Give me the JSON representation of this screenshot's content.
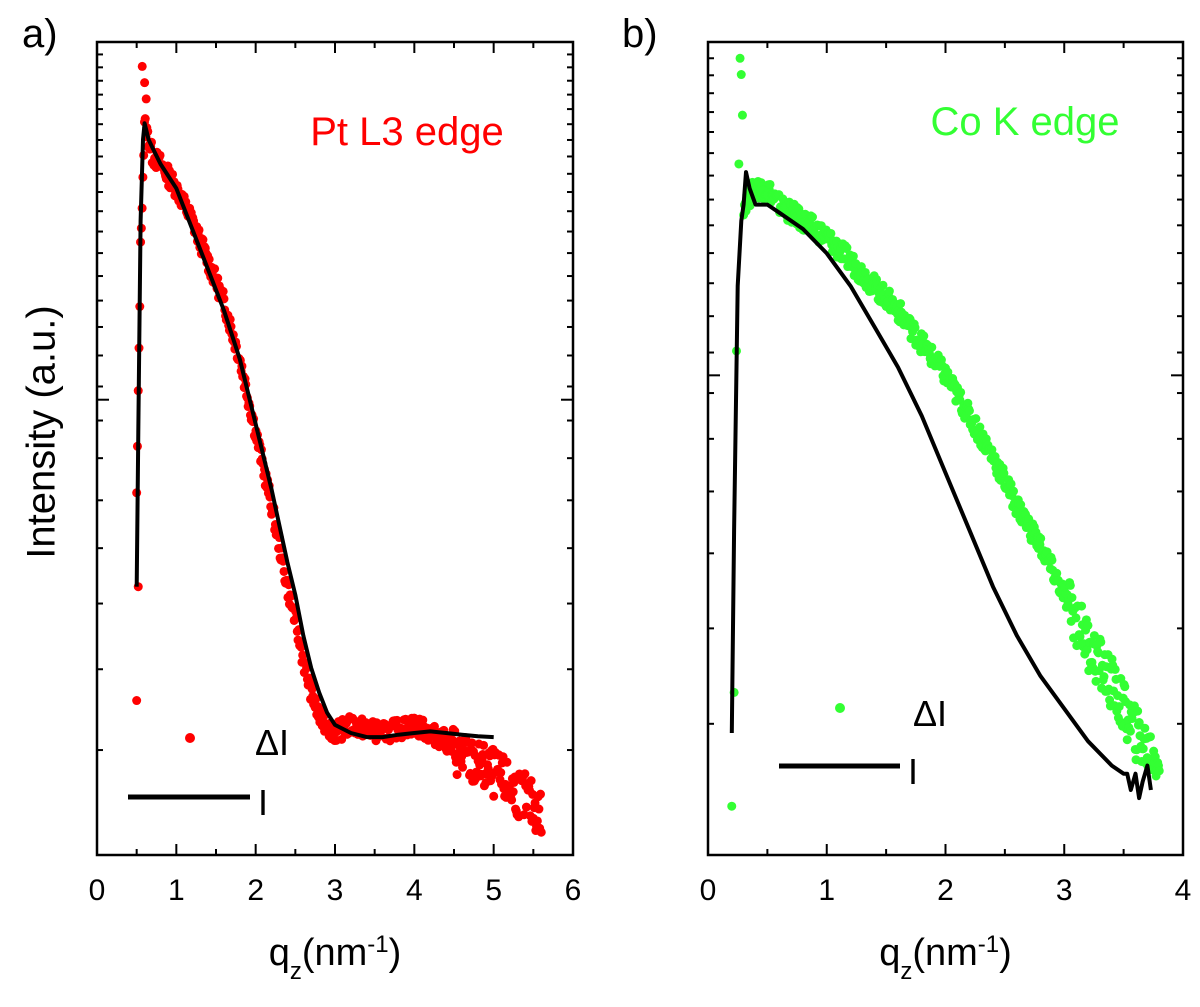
{
  "figure": {
    "ylabel": "Intensity (a.u.)"
  },
  "chart_data": [
    {
      "type": "scatter",
      "panel_label": "a)",
      "title": "Pt L3 edge",
      "title_color": "#ff0000",
      "xlabel_main": "q",
      "xlabel_sub": "z",
      "xlabel_rest": "(nm",
      "xlabel_sup": "-1",
      "xlabel_close": ")",
      "ylabel": "Intensity (a.u.)",
      "xlim": [
        0,
        6
      ],
      "ylim": [
        0,
        1
      ],
      "xticks": [
        0,
        1,
        2,
        3,
        4,
        5,
        6
      ],
      "xtick_labels": [
        "0",
        "1",
        "2",
        "3",
        "4",
        "5",
        "6"
      ],
      "y_scale": "log (unlabeled)",
      "legend": {
        "placement": "bottom-left",
        "entries": [
          "ΔI",
          "I"
        ]
      },
      "series": [
        {
          "name": "ΔI",
          "style": "points",
          "color": "#ff0000",
          "outliers": [
            [
              0.5,
              0.19
            ],
            [
              0.52,
              0.33
            ],
            [
              0.57,
              0.97
            ],
            [
              0.6,
              0.95
            ],
            [
              0.62,
              0.93
            ],
            [
              0.64,
              0.89
            ]
          ],
          "x": [
            0.5,
            0.55,
            0.6,
            0.7,
            0.8,
            1.0,
            1.2,
            1.4,
            1.6,
            1.8,
            2.0,
            2.2,
            2.4,
            2.5,
            2.6,
            2.7,
            2.8,
            3.0,
            3.2,
            3.4,
            3.6,
            3.8,
            4.0,
            4.2,
            4.4,
            4.6,
            4.8,
            5.0,
            5.2,
            5.4,
            5.6
          ],
          "y": [
            0.44,
            0.75,
            0.9,
            0.86,
            0.85,
            0.82,
            0.78,
            0.73,
            0.68,
            0.61,
            0.52,
            0.43,
            0.33,
            0.29,
            0.24,
            0.2,
            0.17,
            0.15,
            0.16,
            0.155,
            0.15,
            0.155,
            0.16,
            0.15,
            0.14,
            0.12,
            0.11,
            0.1,
            0.085,
            0.07,
            0.05
          ],
          "spread": 0.012
        },
        {
          "name": "I",
          "style": "line",
          "color": "#000000",
          "x": [
            0.5,
            0.52,
            0.55,
            0.58,
            0.6,
            0.65,
            0.7,
            0.8,
            1.0,
            1.2,
            1.4,
            1.6,
            1.8,
            2.0,
            2.2,
            2.4,
            2.5,
            2.6,
            2.7,
            2.8,
            2.9,
            3.0,
            3.2,
            3.4,
            3.6,
            3.8,
            4.0,
            4.2,
            4.4,
            4.6,
            4.8,
            5.0
          ],
          "y": [
            0.33,
            0.52,
            0.78,
            0.88,
            0.9,
            0.88,
            0.87,
            0.85,
            0.82,
            0.77,
            0.72,
            0.67,
            0.61,
            0.53,
            0.45,
            0.36,
            0.32,
            0.27,
            0.23,
            0.2,
            0.175,
            0.16,
            0.15,
            0.145,
            0.145,
            0.148,
            0.15,
            0.152,
            0.15,
            0.148,
            0.146,
            0.145
          ]
        }
      ]
    },
    {
      "type": "scatter",
      "panel_label": "b)",
      "title": "Co K edge",
      "title_color": "#33ff33",
      "xlabel_main": "q",
      "xlabel_sub": "z",
      "xlabel_rest": "(nm",
      "xlabel_sup": "-1",
      "xlabel_close": ")",
      "xlim": [
        0,
        4
      ],
      "ylim": [
        0,
        1
      ],
      "xticks": [
        0,
        1,
        2,
        3,
        4
      ],
      "xtick_labels": [
        "0",
        "1",
        "2",
        "3",
        "4"
      ],
      "y_scale": "log (unlabeled)",
      "legend": {
        "placement": "bottom-center",
        "entries": [
          "ΔI",
          "I"
        ]
      },
      "series": [
        {
          "name": "ΔI",
          "style": "points",
          "color": "#33ff33",
          "outliers": [
            [
              0.2,
              0.06
            ],
            [
              0.22,
              0.2
            ],
            [
              0.24,
              0.62
            ],
            [
              0.26,
              0.85
            ],
            [
              0.27,
              0.98
            ],
            [
              0.28,
              0.96
            ],
            [
              0.29,
              0.91
            ]
          ],
          "x": [
            0.3,
            0.4,
            0.5,
            0.6,
            0.8,
            1.0,
            1.2,
            1.4,
            1.6,
            1.8,
            2.0,
            2.2,
            2.4,
            2.6,
            2.8,
            3.0,
            3.2,
            3.4,
            3.6,
            3.7,
            3.8
          ],
          "y": [
            0.8,
            0.82,
            0.82,
            0.8,
            0.78,
            0.76,
            0.73,
            0.7,
            0.67,
            0.63,
            0.59,
            0.54,
            0.49,
            0.43,
            0.38,
            0.32,
            0.26,
            0.21,
            0.15,
            0.13,
            0.12
          ],
          "spread": 0.013
        },
        {
          "name": "I",
          "style": "line",
          "color": "#000000",
          "x": [
            0.2,
            0.22,
            0.25,
            0.28,
            0.3,
            0.32,
            0.35,
            0.4,
            0.5,
            0.6,
            0.8,
            1.0,
            1.2,
            1.4,
            1.6,
            1.8,
            2.0,
            2.2,
            2.4,
            2.6,
            2.8,
            3.0,
            3.2,
            3.4,
            3.5,
            3.53,
            3.56,
            3.6,
            3.63,
            3.66,
            3.7,
            3.73
          ],
          "y": [
            0.15,
            0.4,
            0.7,
            0.78,
            0.8,
            0.84,
            0.82,
            0.8,
            0.8,
            0.79,
            0.77,
            0.74,
            0.7,
            0.65,
            0.6,
            0.54,
            0.47,
            0.4,
            0.33,
            0.27,
            0.22,
            0.18,
            0.14,
            0.11,
            0.1,
            0.1,
            0.08,
            0.1,
            0.07,
            0.09,
            0.11,
            0.08
          ]
        }
      ]
    }
  ]
}
